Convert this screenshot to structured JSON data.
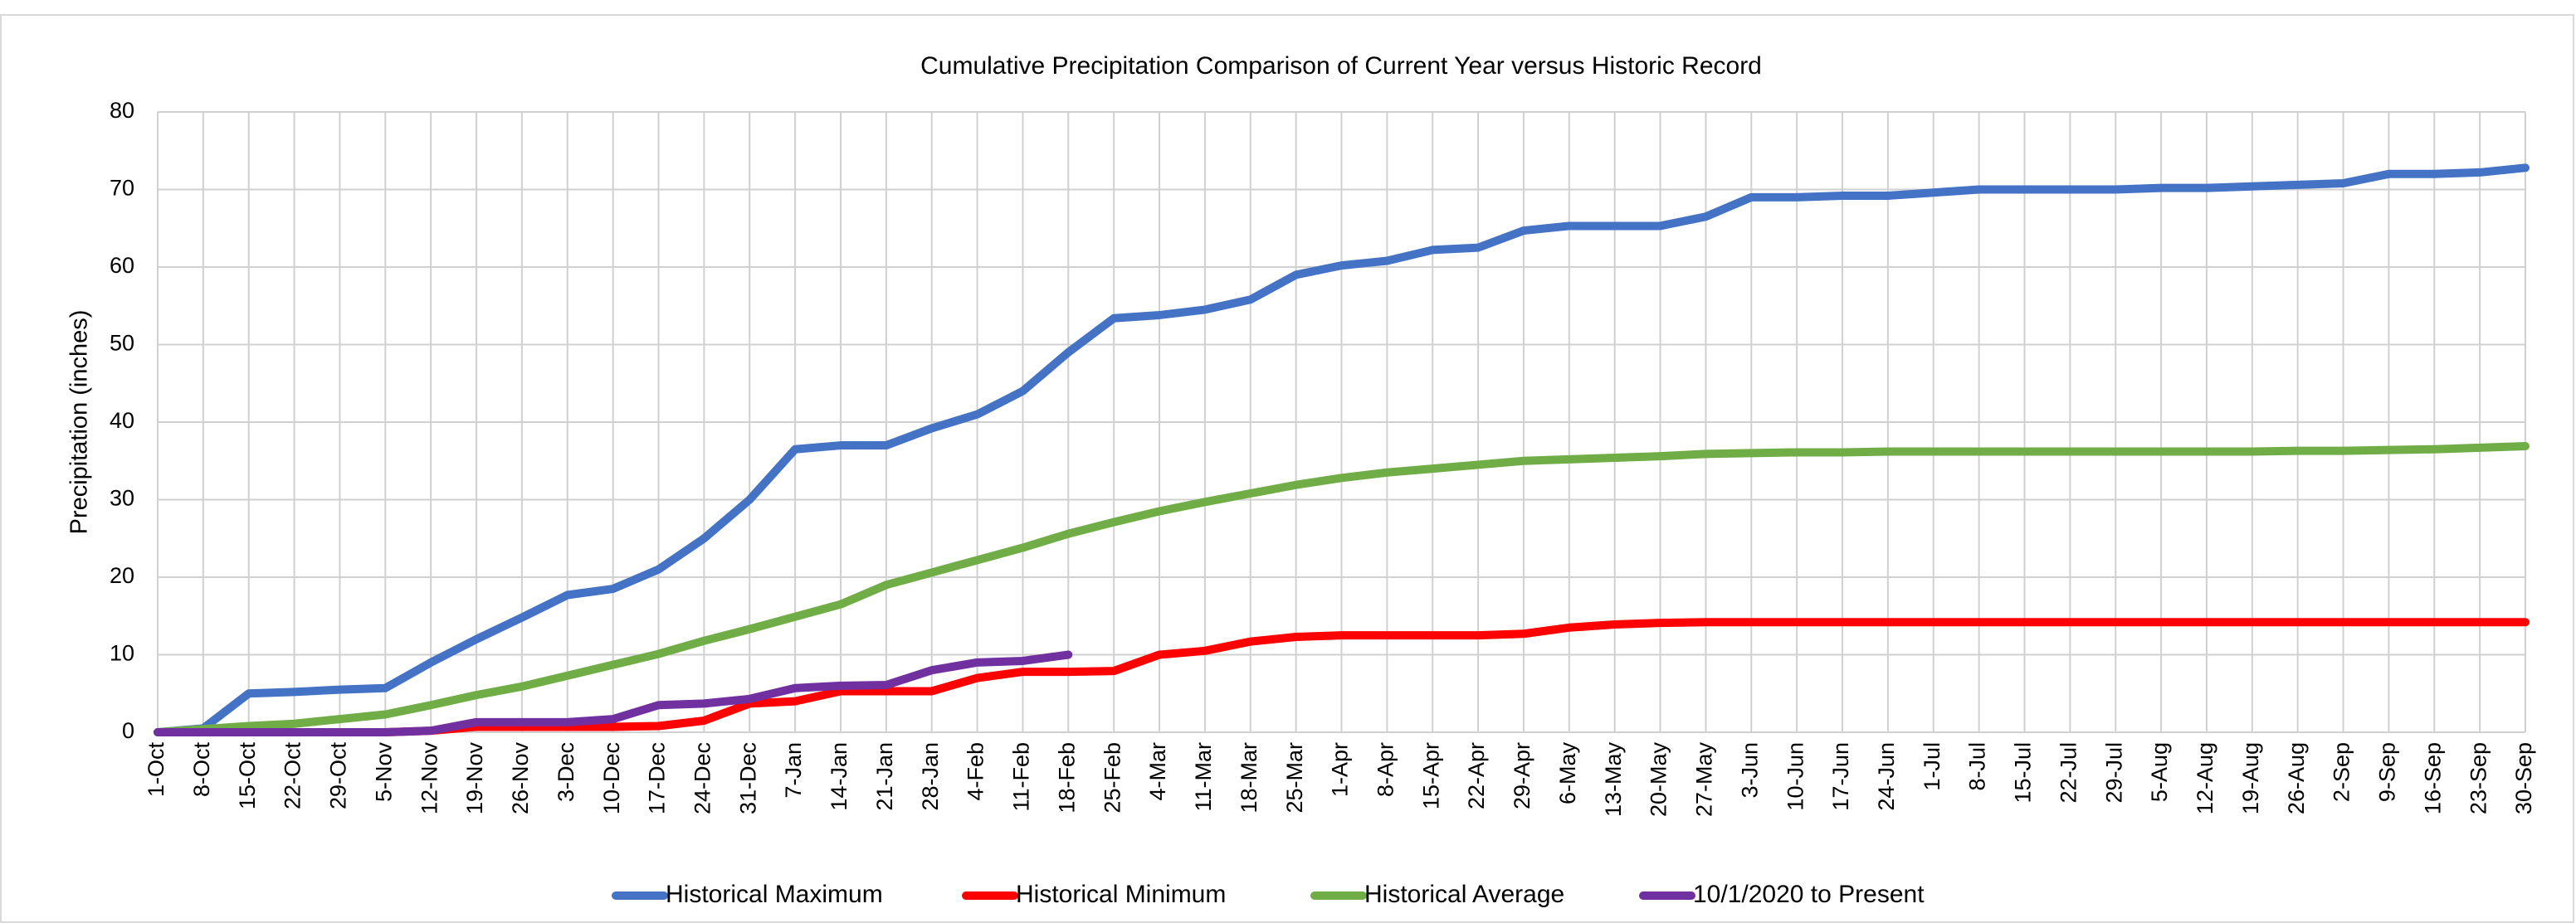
{
  "chart_data": {
    "type": "line",
    "title": "Cumulative Precipitation Comparison of Current Year versus Historic Record",
    "y_label": "Precipitation (inches)",
    "categories": [
      "1-Oct",
      "8-Oct",
      "15-Oct",
      "22-Oct",
      "29-Oct",
      "5-Nov",
      "12-Nov",
      "19-Nov",
      "26-Nov",
      "3-Dec",
      "10-Dec",
      "17-Dec",
      "24-Dec",
      "31-Dec",
      "7-Jan",
      "14-Jan",
      "21-Jan",
      "28-Jan",
      "4-Feb",
      "11-Feb",
      "18-Feb",
      "25-Feb",
      "4-Mar",
      "11-Mar",
      "18-Mar",
      "25-Mar",
      "1-Apr",
      "8-Apr",
      "15-Apr",
      "22-Apr",
      "29-Apr",
      "6-May",
      "13-May",
      "20-May",
      "27-May",
      "3-Jun",
      "10-Jun",
      "17-Jun",
      "24-Jun",
      "1-Jul",
      "8-Jul",
      "15-Jul",
      "22-Jul",
      "29-Jul",
      "5-Aug",
      "12-Aug",
      "19-Aug",
      "26-Aug",
      "2-Sep",
      "9-Sep",
      "16-Sep",
      "23-Sep",
      "30-Sep"
    ],
    "series": [
      {
        "name": "Historical Maximum",
        "color": "#4472c4",
        "values": [
          0,
          0.5,
          5,
          5.2,
          5.5,
          5.7,
          9,
          12,
          14.8,
          17.7,
          18.5,
          21,
          25,
          30,
          36.5,
          37,
          37,
          39.2,
          41,
          44,
          49,
          53.4,
          53.8,
          54.5,
          55.8,
          59,
          60.2,
          60.8,
          62.2,
          62.5,
          64.7,
          65.3,
          65.3,
          65.3,
          66.5,
          69,
          69,
          69.2,
          69.2,
          69.6,
          70,
          70,
          70,
          70,
          70.2,
          70.2,
          70.4,
          70.6,
          70.8,
          72,
          72,
          72.2,
          72.8
        ]
      },
      {
        "name": "Historical Minimum",
        "color": "#ff0000",
        "values": [
          0,
          0,
          0,
          0,
          0,
          0,
          0.2,
          0.7,
          0.7,
          0.7,
          0.7,
          0.8,
          1.5,
          3.7,
          4,
          5.3,
          5.3,
          5.3,
          7,
          7.8,
          7.8,
          7.9,
          10,
          10.5,
          11.7,
          12.3,
          12.5,
          12.5,
          12.5,
          12.5,
          12.7,
          13.5,
          13.9,
          14.1,
          14.2,
          14.2,
          14.2,
          14.2,
          14.2,
          14.2,
          14.2,
          14.2,
          14.2,
          14.2,
          14.2,
          14.2,
          14.2,
          14.2,
          14.2,
          14.2,
          14.2,
          14.2,
          14.2
        ]
      },
      {
        "name": "Historical Average",
        "color": "#70ad47",
        "values": [
          0,
          0.4,
          0.8,
          1.1,
          1.7,
          2.3,
          3.5,
          4.8,
          5.9,
          7.3,
          8.7,
          10.1,
          11.8,
          13.3,
          14.9,
          16.5,
          19,
          20.6,
          22.2,
          23.8,
          25.6,
          27.1,
          28.5,
          29.7,
          30.8,
          31.9,
          32.8,
          33.5,
          34,
          34.5,
          35,
          35.2,
          35.4,
          35.6,
          35.9,
          36,
          36.1,
          36.1,
          36.2,
          36.2,
          36.2,
          36.2,
          36.2,
          36.2,
          36.2,
          36.2,
          36.2,
          36.3,
          36.3,
          36.4,
          36.5,
          36.7,
          36.9
        ]
      },
      {
        "name": "10/1/2020 to Present",
        "color": "#7030a0",
        "values": [
          0,
          0,
          0,
          0,
          0,
          0,
          0.2,
          1.3,
          1.3,
          1.3,
          1.7,
          3.5,
          3.7,
          4.3,
          5.7,
          6,
          6.1,
          8,
          9,
          9.2,
          10,
          null,
          null,
          null,
          null,
          null,
          null,
          null,
          null,
          null,
          null,
          null,
          null,
          null,
          null,
          null,
          null,
          null,
          null,
          null,
          null,
          null,
          null,
          null,
          null,
          null,
          null,
          null,
          null,
          null,
          null,
          null,
          null
        ]
      }
    ],
    "ylim": [
      0,
      80
    ],
    "yticks": [
      0,
      10,
      20,
      30,
      40,
      50,
      60,
      70,
      80
    ],
    "grid": true,
    "legend": "bottom"
  }
}
